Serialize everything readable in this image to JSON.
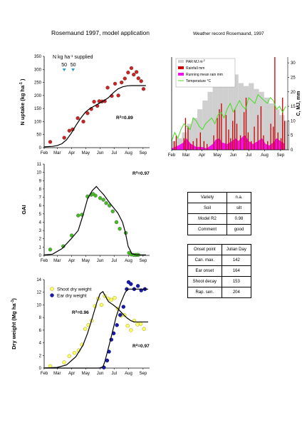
{
  "page": {
    "title": "Rosemaund 1997, model application",
    "weather_title": "Weather record Rosemaund, 1997"
  },
  "months": [
    "Feb",
    "Mar",
    "Apr",
    "May",
    "Jun",
    "Jul",
    "Aug",
    "Sep"
  ],
  "chart_data": [
    {
      "id": "n-uptake",
      "type": "scatter",
      "ylabel": "N uptake (kg ha-1 )",
      "ylim": [
        0,
        350
      ],
      "yticks": [
        0,
        50,
        100,
        150,
        200,
        250,
        300,
        350
      ],
      "xlim": [
        32,
        258
      ],
      "r2_label": "R2=0.89",
      "annotation": {
        "label": "N kg ha-1 supplied",
        "applications": [
          {
            "day": 75,
            "label": "50"
          },
          {
            "day": 94,
            "label": "50"
          }
        ]
      },
      "series": [
        {
          "kind": "points",
          "color": "#cc2222",
          "x": [
            45,
            75,
            86,
            93,
            104,
            116,
            125,
            133,
            139,
            146,
            150,
            156,
            162,
            168,
            177,
            184,
            191,
            198,
            205,
            212,
            219,
            224,
            230,
            234,
            240,
            245
          ],
          "y": [
            22,
            38,
            65,
            70,
            113,
            100,
            132,
            148,
            176,
            160,
            178,
            177,
            178,
            230,
            198,
            245,
            200,
            250,
            265,
            288,
            305,
            280,
            290,
            266,
            255,
            225
          ]
        },
        {
          "kind": "line",
          "color": "#000000",
          "x": [
            32,
            50,
            60,
            70,
            80,
            90,
            100,
            110,
            120,
            130,
            140,
            150,
            160,
            170,
            180,
            190,
            200,
            210,
            220,
            230,
            240,
            250
          ],
          "y": [
            3,
            5,
            8,
            15,
            30,
            55,
            85,
            112,
            135,
            150,
            160,
            170,
            180,
            192,
            210,
            225,
            233,
            237,
            238,
            238,
            238,
            238
          ]
        }
      ]
    },
    {
      "id": "gai",
      "type": "scatter",
      "ylabel": "GAI",
      "ylim": [
        0,
        11
      ],
      "yticks": [
        0,
        1,
        2,
        3,
        4,
        5,
        6,
        7,
        8,
        9,
        10,
        11
      ],
      "xlim": [
        32,
        258
      ],
      "r2_label": "R2=0.97",
      "series": [
        {
          "kind": "points",
          "color": "#44bb22",
          "x": [
            45,
            73,
            91,
            105,
            113,
            125,
            133,
            137,
            142,
            152,
            159,
            165,
            172,
            179,
            187,
            194,
            207,
            214,
            219,
            224,
            228,
            231,
            234
          ],
          "y": [
            0.7,
            1.1,
            2.4,
            4.8,
            4.9,
            7.1,
            7.3,
            7.4,
            7.2,
            6.9,
            6.7,
            6.3,
            6.0,
            5.3,
            4.0,
            3.2,
            2.7,
            0.3,
            0.1,
            0.05,
            0.05,
            0.05,
            0.05
          ]
        },
        {
          "kind": "line",
          "color": "#000000",
          "x": [
            32,
            50,
            70,
            90,
            105,
            115,
            125,
            135,
            144,
            150,
            160,
            170,
            180,
            190,
            200,
            206,
            212,
            220,
            230,
            240,
            250
          ],
          "y": [
            0.05,
            0.15,
            0.8,
            2.0,
            3.0,
            4.8,
            6.8,
            7.8,
            8.3,
            7.9,
            7.3,
            6.5,
            5.8,
            5.1,
            4.0,
            2.8,
            1.1,
            0.2,
            0.05,
            0.05,
            0.05
          ]
        }
      ]
    },
    {
      "id": "dry-weight",
      "type": "scatter",
      "ylabel": "Dry weight (Mg ha-1)",
      "ylim": [
        0,
        14
      ],
      "yticks": [
        0,
        2,
        4,
        6,
        8,
        10,
        12,
        14
      ],
      "xlim": [
        32,
        258
      ],
      "legend": [
        "Shoot dry weight",
        "Ear dry weight"
      ],
      "r2_labels": [
        {
          "text": "R2=0.96",
          "series": "Shoot dry weight"
        },
        {
          "text": "R2=0.97",
          "series": "Ear dry weight"
        }
      ],
      "series": [
        {
          "name": "Shoot dry weight",
          "kind": "points",
          "color": "#ffff66",
          "stroke": "#888800",
          "x": [
            45,
            75,
            86,
            97,
            106,
            113,
            120,
            127,
            134,
            141,
            148,
            155,
            162,
            169,
            176,
            183,
            190,
            197,
            204,
            211,
            218,
            225,
            232,
            239,
            246
          ],
          "y": [
            0.3,
            0.9,
            1.9,
            2.4,
            2.8,
            3.7,
            6.2,
            6.8,
            7.5,
            9.8,
            11.0,
            10.0,
            11.4,
            11.0,
            10.8,
            11.1,
            9.4,
            8.3,
            8.4,
            6.7,
            6.0,
            7.5,
            6.9,
            7.0,
            6.2
          ]
        },
        {
          "name": "Ear dry weight",
          "kind": "points",
          "color": "#1a1aaa",
          "stroke": "#000066",
          "x": [
            160,
            167,
            171,
            176,
            181,
            188,
            195,
            202,
            209,
            213,
            218,
            225,
            233,
            240,
            248
          ],
          "y": [
            0.1,
            1.2,
            2.6,
            4.5,
            5.5,
            6.8,
            8.4,
            9.7,
            12.5,
            13.6,
            13.3,
            12.5,
            13.0,
            12.3,
            12.5
          ]
        },
        {
          "name": "Shoot model",
          "kind": "line",
          "color": "#000000",
          "x": [
            32,
            60,
            80,
            100,
            115,
            125,
            135,
            145,
            152,
            158,
            163,
            170,
            180,
            190,
            200,
            210,
            218,
            225,
            235,
            245,
            255
          ],
          "y": [
            0.02,
            0.1,
            0.5,
            1.8,
            3.6,
            5.5,
            7.9,
            10.4,
            11.8,
            12.1,
            11.4,
            10.5,
            10.0,
            9.4,
            8.6,
            7.9,
            7.5,
            7.3,
            7.3,
            7.3,
            7.3
          ]
        },
        {
          "name": "Ear model",
          "kind": "line",
          "color": "#000000",
          "x": [
            32,
            100,
            150,
            158,
            162,
            168,
            176,
            186,
            196,
            206,
            212,
            220,
            230,
            240,
            255
          ],
          "y": [
            0.0,
            0.0,
            0.0,
            0.2,
            1.0,
            2.7,
            5.0,
            8.0,
            10.3,
            12.0,
            12.5,
            12.5,
            12.5,
            12.5,
            12.5
          ]
        }
      ]
    },
    {
      "id": "weather",
      "type": "bar",
      "ylabel": "C, MJ, mm",
      "ylim": [
        0,
        32
      ],
      "yticks": [
        0,
        5,
        10,
        15,
        20,
        25,
        30
      ],
      "xlim": [
        32,
        258
      ],
      "legend": [
        "PAR MJ m-2",
        "Rainfall mm",
        "Running mean rain mm",
        "Temperature °C"
      ],
      "colors": {
        "par": "#cfcfcf",
        "rain": "#cc0000",
        "running_mean": "#ee11ee",
        "temperature": "#44dd22"
      },
      "par_bins": {
        "x": [
          32,
          42,
          52,
          62,
          72,
          82,
          92,
          102,
          112,
          122,
          132,
          142,
          152,
          162,
          172,
          182,
          192,
          202,
          212,
          222,
          232,
          242,
          252
        ],
        "y": [
          3,
          4,
          6,
          9,
          11,
          14,
          17,
          20,
          22,
          23,
          25,
          24,
          26,
          23,
          22,
          23,
          21,
          20,
          18,
          16,
          14,
          12,
          10
        ]
      },
      "rainfall": {
        "x": [
          36,
          40,
          55,
          58,
          63,
          68,
          73,
          80,
          87,
          94,
          100,
          113,
          120,
          124,
          128,
          137,
          142,
          146,
          150,
          154,
          158,
          165,
          172,
          176,
          180,
          186,
          192,
          199,
          205,
          210,
          218,
          224,
          229,
          232,
          238,
          244,
          247,
          251
        ],
        "y": [
          3,
          5,
          4,
          11,
          8,
          2,
          3,
          4,
          6,
          3,
          2,
          5,
          11,
          14,
          16,
          12,
          7,
          4,
          10,
          14,
          9,
          5,
          13,
          18,
          6,
          3,
          8,
          12,
          15,
          5,
          3,
          9,
          8,
          32,
          6,
          4,
          18,
          10
        ]
      },
      "running_mean": {
        "x": [
          32,
          45,
          55,
          60,
          70,
          80,
          90,
          100,
          112,
          118,
          125,
          130,
          140,
          150,
          156,
          162,
          170,
          175,
          182,
          190,
          200,
          208,
          215,
          222,
          230,
          236,
          244,
          252
        ],
        "y": [
          0.5,
          1.5,
          2.5,
          4.0,
          2.0,
          1.0,
          1.0,
          0.5,
          2.0,
          3.5,
          4.0,
          2.5,
          2.0,
          3.0,
          4.0,
          3.0,
          4.5,
          5.0,
          3.0,
          2.0,
          3.0,
          4.0,
          2.0,
          1.5,
          2.5,
          4.0,
          3.0,
          2.0
        ]
      },
      "temperature": {
        "x": [
          32,
          38,
          44,
          50,
          56,
          62,
          68,
          74,
          80,
          86,
          92,
          98,
          104,
          110,
          116,
          122,
          128,
          134,
          140,
          146,
          152,
          158,
          164,
          170,
          176,
          182,
          188,
          194,
          200,
          206,
          212,
          218,
          224,
          230,
          236,
          242,
          248,
          254
        ],
        "y": [
          3,
          6,
          4,
          7,
          9,
          8,
          7,
          11,
          10,
          8,
          7,
          9,
          10,
          11,
          9,
          12,
          13,
          11,
          14,
          16,
          13,
          15,
          17,
          15,
          14,
          18,
          17,
          16,
          19,
          18,
          17,
          16,
          18,
          17,
          14,
          15,
          13,
          15
        ]
      }
    }
  ],
  "info_table": [
    {
      "label": "Variety",
      "value": "n.a."
    },
    {
      "label": "Soil",
      "value": "silt"
    },
    {
      "label": "Model R2",
      "value": "0.98"
    },
    {
      "label": "Comment",
      "value": "good"
    }
  ],
  "onset_table": {
    "headers": [
      "Onset point",
      "Julian Day"
    ],
    "rows": [
      {
        "label": "Can. max.",
        "value": "142"
      },
      {
        "label": "Ear onset",
        "value": "164"
      },
      {
        "label": "Shoot decay",
        "value": "153"
      },
      {
        "label": "Rap. sen.",
        "value": "204"
      }
    ]
  }
}
